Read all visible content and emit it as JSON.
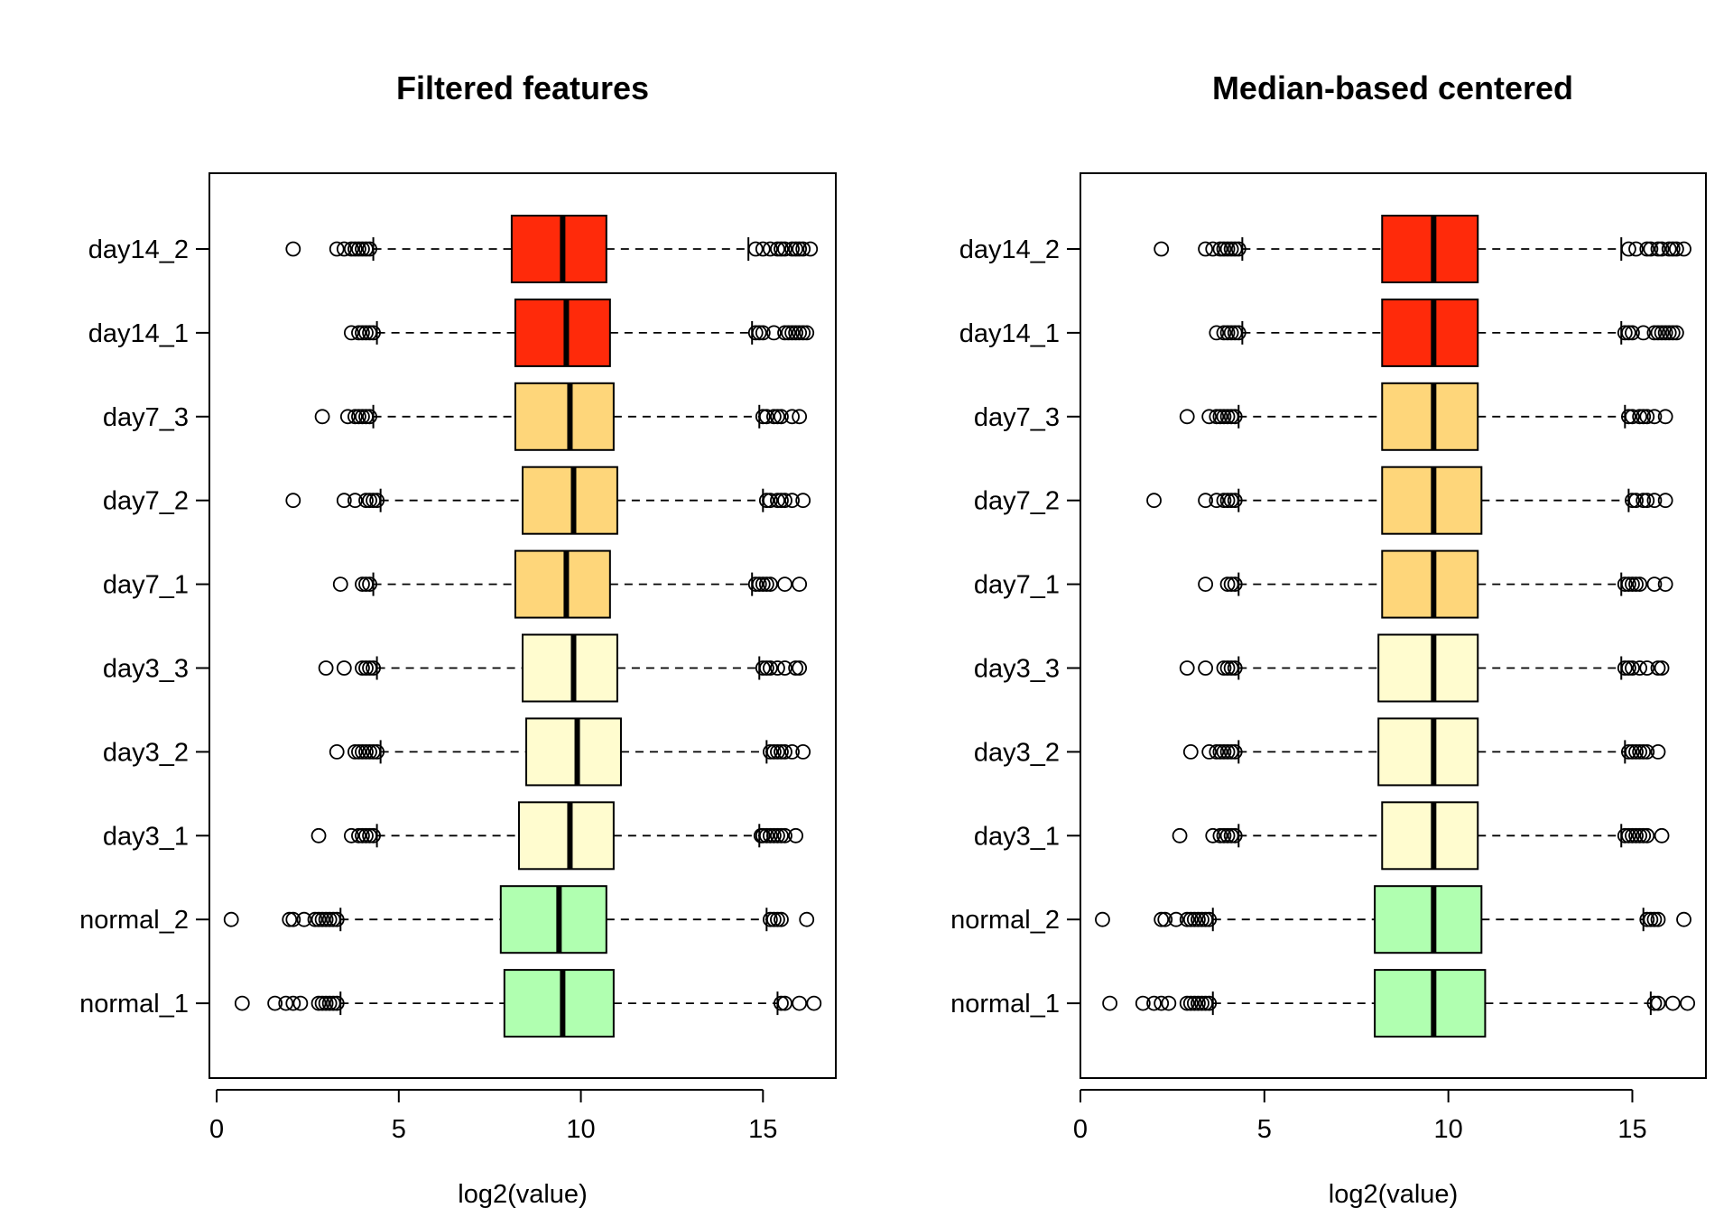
{
  "chart_data": [
    {
      "type": "box",
      "title": "Filtered features",
      "xlabel": "log2(value)",
      "ylabel": "",
      "orientation": "horizontal",
      "xlim": [
        -0.2,
        17.0
      ],
      "xticks": [
        0,
        5,
        10,
        15
      ],
      "grid": false,
      "legend": "none",
      "series": [
        {
          "name": "day14_2",
          "color": "#ff2a0a",
          "whisker_low": 4.3,
          "q1": 8.1,
          "median": 9.5,
          "q3": 10.7,
          "whisker_high": 14.6,
          "outliers": [
            2.1,
            3.3,
            3.5,
            3.7,
            3.8,
            3.9,
            4.0,
            4.1,
            4.2,
            14.8,
            15.0,
            15.2,
            15.4,
            15.5,
            15.6,
            15.8,
            15.9,
            16.0,
            16.1,
            16.3
          ]
        },
        {
          "name": "day14_1",
          "color": "#ff2a0a",
          "whisker_low": 4.4,
          "q1": 8.2,
          "median": 9.6,
          "q3": 10.8,
          "whisker_high": 14.7,
          "outliers": [
            3.7,
            3.9,
            4.0,
            4.1,
            4.2,
            4.3,
            14.8,
            14.9,
            15.0,
            15.3,
            15.6,
            15.7,
            15.8,
            15.9,
            16.0,
            16.1,
            16.2
          ]
        },
        {
          "name": "day7_3",
          "color": "#fed67a",
          "whisker_low": 4.3,
          "q1": 8.2,
          "median": 9.7,
          "q3": 10.9,
          "whisker_high": 14.9,
          "outliers": [
            2.9,
            3.6,
            3.8,
            3.9,
            4.0,
            4.1,
            4.2,
            15.0,
            15.1,
            15.3,
            15.4,
            15.5,
            15.8,
            16.0
          ]
        },
        {
          "name": "day7_2",
          "color": "#fed67a",
          "whisker_low": 4.5,
          "q1": 8.4,
          "median": 9.8,
          "q3": 11.0,
          "whisker_high": 15.0,
          "outliers": [
            2.1,
            3.5,
            3.8,
            4.1,
            4.2,
            4.3,
            4.4,
            15.1,
            15.2,
            15.4,
            15.5,
            15.6,
            15.8,
            16.1
          ]
        },
        {
          "name": "day7_1",
          "color": "#fed67a",
          "whisker_low": 4.3,
          "q1": 8.2,
          "median": 9.6,
          "q3": 10.8,
          "whisker_high": 14.7,
          "outliers": [
            3.4,
            4.0,
            4.1,
            4.2,
            14.8,
            14.9,
            15.0,
            15.1,
            15.2,
            15.6,
            16.0
          ]
        },
        {
          "name": "day3_3",
          "color": "#fffccf",
          "whisker_low": 4.4,
          "q1": 8.4,
          "median": 9.8,
          "q3": 11.0,
          "whisker_high": 14.9,
          "outliers": [
            3.0,
            3.5,
            4.0,
            4.1,
            4.2,
            4.3,
            15.0,
            15.1,
            15.2,
            15.4,
            15.6,
            15.9,
            16.0
          ]
        },
        {
          "name": "day3_2",
          "color": "#fffccf",
          "whisker_low": 4.5,
          "q1": 8.5,
          "median": 9.9,
          "q3": 11.1,
          "whisker_high": 15.1,
          "outliers": [
            3.3,
            3.8,
            3.9,
            4.0,
            4.1,
            4.2,
            4.3,
            4.4,
            15.2,
            15.3,
            15.4,
            15.5,
            15.6,
            15.8,
            16.1
          ]
        },
        {
          "name": "day3_1",
          "color": "#fffccf",
          "whisker_low": 4.4,
          "q1": 8.3,
          "median": 9.7,
          "q3": 10.9,
          "whisker_high": 14.9,
          "outliers": [
            2.8,
            3.7,
            3.9,
            4.0,
            4.1,
            4.2,
            4.3,
            14.95,
            15.0,
            15.1,
            15.2,
            15.3,
            15.4,
            15.5,
            15.6,
            15.9
          ]
        },
        {
          "name": "normal_2",
          "color": "#b0ffb0",
          "whisker_low": 3.4,
          "q1": 7.8,
          "median": 9.4,
          "q3": 10.7,
          "whisker_high": 15.1,
          "outliers": [
            0.4,
            2.0,
            2.1,
            2.4,
            2.7,
            2.8,
            2.9,
            3.0,
            3.1,
            3.2,
            3.3,
            15.2,
            15.3,
            15.4,
            15.5,
            16.2
          ]
        },
        {
          "name": "normal_1",
          "color": "#b0ffb0",
          "whisker_low": 3.4,
          "q1": 7.9,
          "median": 9.5,
          "q3": 10.9,
          "whisker_high": 15.4,
          "outliers": [
            0.7,
            1.6,
            1.9,
            2.1,
            2.3,
            2.8,
            2.9,
            3.0,
            3.1,
            3.2,
            3.3,
            15.5,
            15.6,
            16.0,
            16.4
          ]
        }
      ]
    },
    {
      "type": "box",
      "title": "Median-based centered",
      "xlabel": "log2(value)",
      "ylabel": "",
      "orientation": "horizontal",
      "xlim": [
        0.0,
        17.0
      ],
      "xticks": [
        0,
        5,
        10,
        15
      ],
      "grid": false,
      "legend": "none",
      "series": [
        {
          "name": "day14_2",
          "color": "#ff2a0a",
          "whisker_low": 4.4,
          "q1": 8.2,
          "median": 9.6,
          "q3": 10.8,
          "whisker_high": 14.7,
          "outliers": [
            2.2,
            3.4,
            3.6,
            3.8,
            3.9,
            4.0,
            4.1,
            4.2,
            4.3,
            14.9,
            15.1,
            15.4,
            15.5,
            15.7,
            15.8,
            16.0,
            16.1,
            16.2,
            16.4
          ]
        },
        {
          "name": "day14_1",
          "color": "#ff2a0a",
          "whisker_low": 4.4,
          "q1": 8.2,
          "median": 9.6,
          "q3": 10.8,
          "whisker_high": 14.7,
          "outliers": [
            3.7,
            3.9,
            4.0,
            4.1,
            4.2,
            4.3,
            14.8,
            14.9,
            15.0,
            15.3,
            15.6,
            15.7,
            15.8,
            15.9,
            16.0,
            16.1,
            16.2
          ]
        },
        {
          "name": "day7_3",
          "color": "#fed67a",
          "whisker_low": 4.3,
          "q1": 8.2,
          "median": 9.6,
          "q3": 10.8,
          "whisker_high": 14.8,
          "outliers": [
            2.9,
            3.5,
            3.7,
            3.8,
            3.9,
            4.0,
            4.1,
            4.2,
            14.9,
            15.0,
            15.2,
            15.3,
            15.4,
            15.6,
            15.9
          ]
        },
        {
          "name": "day7_2",
          "color": "#fed67a",
          "whisker_low": 4.3,
          "q1": 8.2,
          "median": 9.6,
          "q3": 10.9,
          "whisker_high": 14.9,
          "outliers": [
            2.0,
            3.4,
            3.7,
            3.9,
            4.0,
            4.1,
            4.2,
            15.0,
            15.1,
            15.3,
            15.4,
            15.6,
            15.9
          ]
        },
        {
          "name": "day7_1",
          "color": "#fed67a",
          "whisker_low": 4.3,
          "q1": 8.2,
          "median": 9.6,
          "q3": 10.8,
          "whisker_high": 14.7,
          "outliers": [
            3.4,
            4.0,
            4.1,
            4.2,
            14.8,
            14.9,
            15.0,
            15.1,
            15.2,
            15.6,
            15.9
          ]
        },
        {
          "name": "day3_3",
          "color": "#fffccf",
          "whisker_low": 4.3,
          "q1": 8.1,
          "median": 9.6,
          "q3": 10.8,
          "whisker_high": 14.7,
          "outliers": [
            2.9,
            3.4,
            3.9,
            4.0,
            4.1,
            4.2,
            14.8,
            14.9,
            15.0,
            15.2,
            15.4,
            15.7,
            15.8
          ]
        },
        {
          "name": "day3_2",
          "color": "#fffccf",
          "whisker_low": 4.3,
          "q1": 8.1,
          "median": 9.6,
          "q3": 10.8,
          "whisker_high": 14.8,
          "outliers": [
            3.0,
            3.5,
            3.7,
            3.8,
            3.9,
            4.0,
            4.1,
            4.2,
            14.9,
            15.0,
            15.1,
            15.2,
            15.3,
            15.4,
            15.7
          ]
        },
        {
          "name": "day3_1",
          "color": "#fffccf",
          "whisker_low": 4.3,
          "q1": 8.2,
          "median": 9.6,
          "q3": 10.8,
          "whisker_high": 14.7,
          "outliers": [
            2.7,
            3.6,
            3.8,
            3.9,
            4.0,
            4.1,
            4.2,
            14.8,
            14.9,
            15.0,
            15.1,
            15.2,
            15.3,
            15.4,
            15.8
          ]
        },
        {
          "name": "normal_2",
          "color": "#b0ffb0",
          "whisker_low": 3.6,
          "q1": 8.0,
          "median": 9.6,
          "q3": 10.9,
          "whisker_high": 15.3,
          "outliers": [
            0.6,
            2.2,
            2.3,
            2.6,
            2.9,
            3.0,
            3.1,
            3.2,
            3.3,
            3.4,
            3.5,
            15.4,
            15.5,
            15.6,
            15.7,
            16.4
          ]
        },
        {
          "name": "normal_1",
          "color": "#b0ffb0",
          "whisker_low": 3.6,
          "q1": 8.0,
          "median": 9.6,
          "q3": 11.0,
          "whisker_high": 15.5,
          "outliers": [
            0.8,
            1.7,
            2.0,
            2.2,
            2.4,
            2.9,
            3.0,
            3.1,
            3.2,
            3.3,
            3.4,
            3.5,
            15.6,
            15.7,
            16.1,
            16.5
          ]
        }
      ]
    }
  ]
}
